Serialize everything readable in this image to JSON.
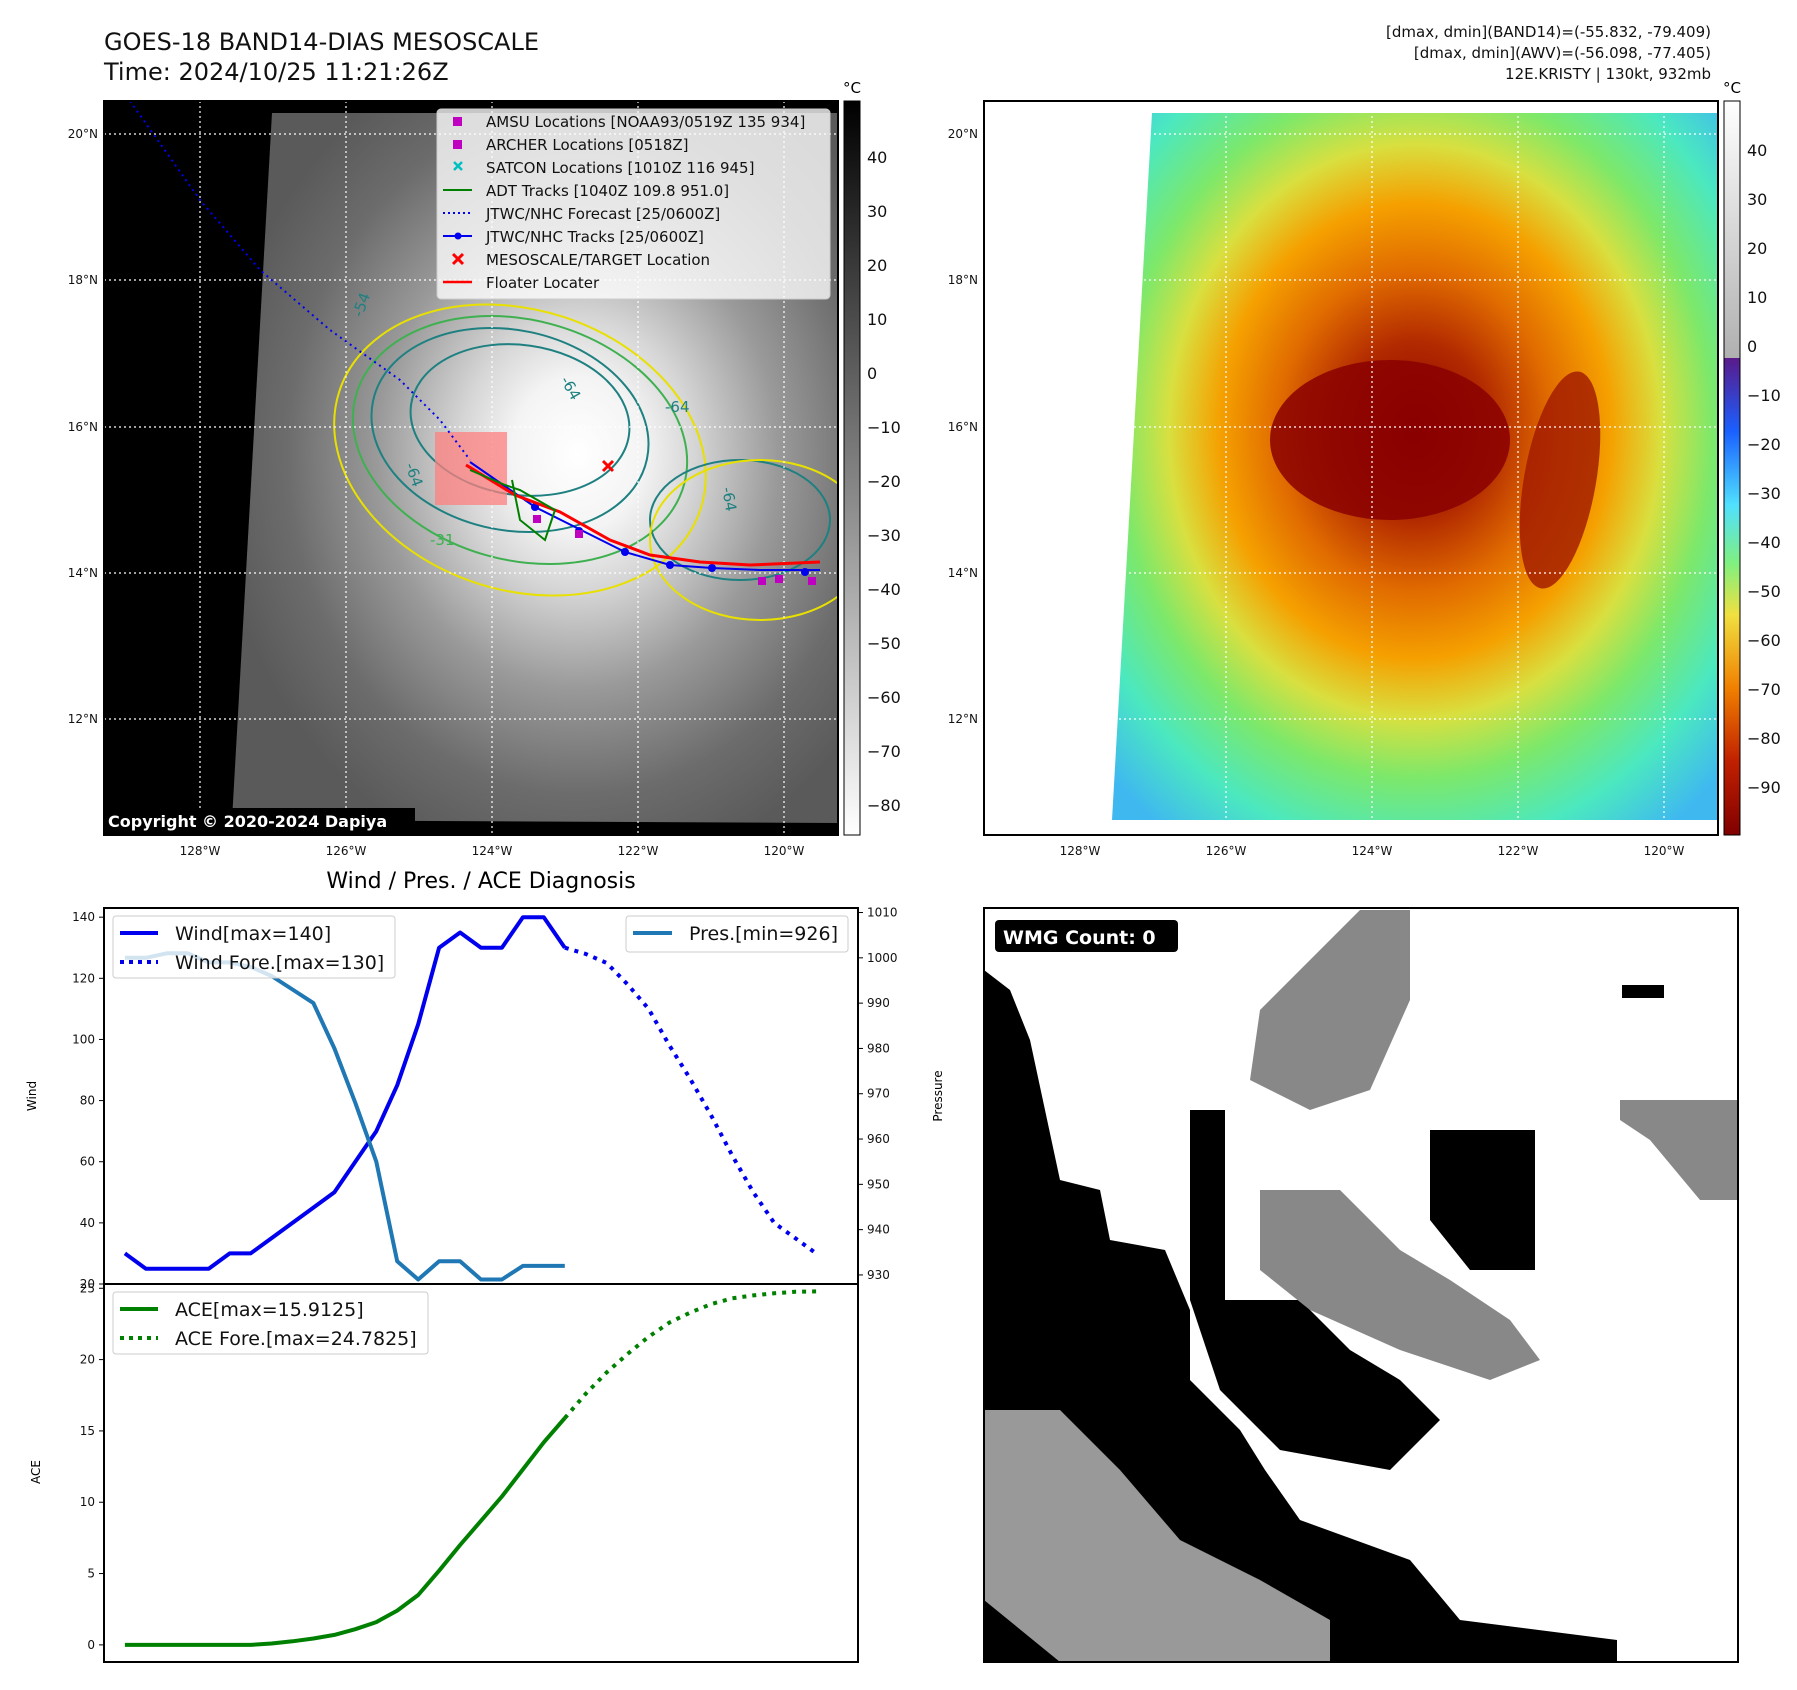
{
  "header": {
    "title": "GOES-18 BAND14-DIAS MESOSCALE",
    "time": "Time: 2024/10/25 11:21:26Z",
    "right_line1": "[dmax, dmin](BAND14)=(-55.832, -79.409)",
    "right_line2": "[dmax, dmin](AWV)=(-56.098, -77.405)",
    "right_line3": "12E.KRISTY | 130kt, 932mb"
  },
  "colors": {
    "wind": "#0000ee",
    "pressure": "#1f77b4",
    "ace": "#008000",
    "track_red": "#ff0000",
    "amsu": "#c000c0",
    "satcon": "#00c0c0"
  },
  "map_axes": {
    "lon_ticks": [
      "128°W",
      "126°W",
      "124°W",
      "122°W",
      "120°W"
    ],
    "lat_ticks": [
      "20°N",
      "18°N",
      "16°N",
      "14°N",
      "12°N"
    ],
    "unit": "°C"
  },
  "ir_panel": {
    "colorbar_ticks": [
      "40",
      "30",
      "20",
      "10",
      "0",
      "−10",
      "−20",
      "−30",
      "−40",
      "−50",
      "−60",
      "−70",
      "−80"
    ],
    "contour_labels": [
      "-54",
      "-64",
      "-64",
      "-64",
      "-31",
      "-64"
    ],
    "copyright": "Copyright © 2020-2024 Dapiya",
    "legend": [
      {
        "label": "AMSU Locations [NOAA93/0519Z 135 934]",
        "marker": "square",
        "color": "#c000c0"
      },
      {
        "label": "ARCHER Locations [0518Z]",
        "marker": "square",
        "color": "#c000c0"
      },
      {
        "label": "SATCON Locations [1010Z 116 945]",
        "marker": "x",
        "color": "#00c0c0"
      },
      {
        "label": "ADT Tracks [1040Z 109.8 951.0]",
        "marker": "line",
        "color": "#008000"
      },
      {
        "label": "JTWC/NHC Forecast [25/0600Z]",
        "marker": "dotted",
        "color": "#0000ee"
      },
      {
        "label": "JTWC/NHC Tracks [25/0600Z]",
        "marker": "line-dot",
        "color": "#0000ee"
      },
      {
        "label": "MESOSCALE/TARGET Location",
        "marker": "x",
        "color": "#ff0000"
      },
      {
        "label": "Floater Locater",
        "marker": "line",
        "color": "#ff0000"
      }
    ]
  },
  "awv_panel": {
    "colorbar_ticks": [
      "40",
      "30",
      "20",
      "10",
      "0",
      "−10",
      "−20",
      "−30",
      "−40",
      "−50",
      "−60",
      "−70",
      "−80",
      "−90"
    ]
  },
  "wmg_panel": {
    "badge": "WMG Count: 0"
  },
  "chart_data": [
    {
      "type": "line",
      "title": "Wind / Pres. / ACE Diagnosis",
      "ylabel": "Wind",
      "ylabel_right": "Pressure",
      "ylim": [
        20,
        143
      ],
      "ylim_right": [
        928,
        1011
      ],
      "y_ticks": [
        20,
        40,
        60,
        80,
        100,
        120,
        140
      ],
      "y_ticks_right": [
        930,
        940,
        950,
        960,
        970,
        980,
        990,
        1000,
        1010
      ],
      "series": [
        {
          "name": "Wind[max=140]",
          "style": "solid",
          "axis": "left",
          "x": [
            0,
            1,
            2,
            3,
            4,
            5,
            6,
            7,
            8,
            9,
            10,
            11,
            12,
            13,
            14,
            15,
            16,
            17,
            18,
            19,
            20,
            21
          ],
          "values": [
            30,
            25,
            25,
            25,
            25,
            30,
            30,
            35,
            40,
            45,
            50,
            60,
            70,
            85,
            105,
            130,
            135,
            130,
            130,
            140,
            140,
            130
          ]
        },
        {
          "name": "Wind Fore.[max=130]",
          "style": "dotted",
          "axis": "left",
          "x": [
            21,
            22,
            23,
            24,
            25,
            26,
            27,
            28,
            29,
            30,
            31,
            32,
            33
          ],
          "values": [
            130,
            128,
            125,
            118,
            110,
            98,
            87,
            75,
            62,
            50,
            40,
            35,
            30
          ]
        },
        {
          "name": "Pres.[min=926]",
          "style": "solid",
          "axis": "right",
          "x": [
            0,
            1,
            2,
            3,
            4,
            5,
            6,
            7,
            8,
            9,
            10,
            11,
            12,
            13,
            14,
            15,
            16,
            17,
            18,
            19,
            20,
            21
          ],
          "values": [
            1000,
            1000,
            1001,
            1001,
            999,
            999,
            998,
            996,
            993,
            990,
            980,
            968,
            955,
            933,
            929,
            933,
            933,
            929,
            929,
            932,
            932,
            932
          ]
        }
      ]
    },
    {
      "type": "line",
      "ylabel": "ACE",
      "ylim": [
        -1.2,
        25.3
      ],
      "y_ticks": [
        0,
        5,
        10,
        15,
        20,
        25
      ],
      "series": [
        {
          "name": "ACE[max=15.9125]",
          "style": "solid",
          "x": [
            0,
            1,
            2,
            3,
            4,
            5,
            6,
            7,
            8,
            9,
            10,
            11,
            12,
            13,
            14,
            15,
            16,
            17,
            18,
            19,
            20,
            21
          ],
          "values": [
            0,
            0,
            0,
            0,
            0,
            0,
            0,
            0.1,
            0.25,
            0.45,
            0.7,
            1.1,
            1.6,
            2.4,
            3.5,
            5.2,
            7.0,
            8.7,
            10.4,
            12.3,
            14.2,
            15.9
          ]
        },
        {
          "name": "ACE Fore.[max=24.7825]",
          "style": "dotted",
          "x": [
            21,
            22,
            23,
            24,
            25,
            26,
            27,
            28,
            29,
            30,
            31,
            32,
            33
          ],
          "values": [
            15.9,
            17.6,
            19.1,
            20.4,
            21.6,
            22.6,
            23.3,
            23.9,
            24.3,
            24.5,
            24.65,
            24.75,
            24.78
          ]
        }
      ]
    }
  ]
}
